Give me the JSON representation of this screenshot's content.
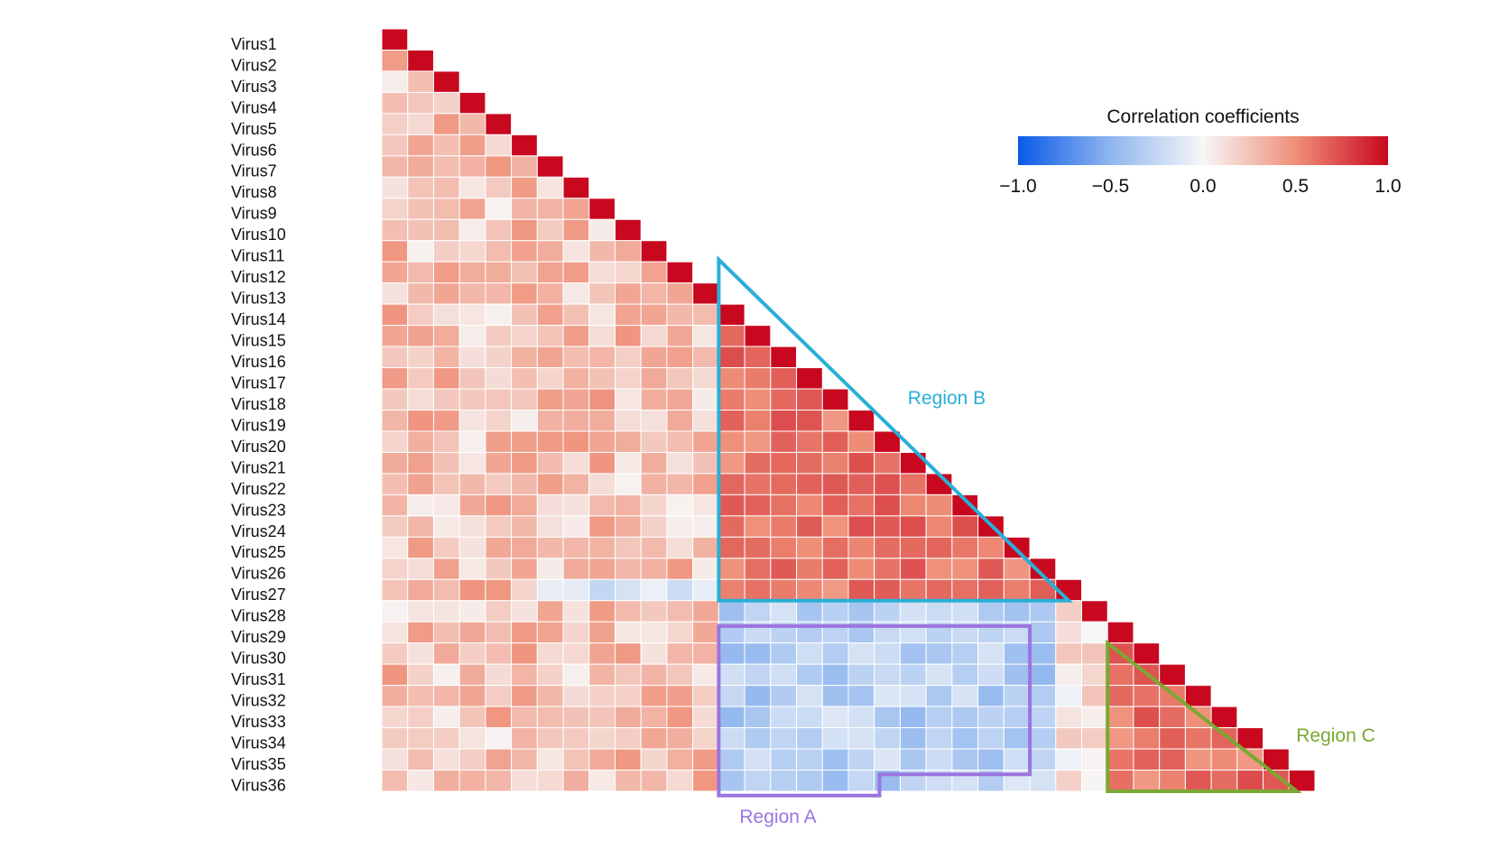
{
  "chart_data": {
    "type": "heatmap",
    "shape": "lower-triangle correlation matrix",
    "row_labels": [
      "Virus1",
      "Virus2",
      "Virus3",
      "Virus4",
      "Virus5",
      "Virus6",
      "Virus7",
      "Virus8",
      "Virus9",
      "Virus10",
      "Virus11",
      "Virus12",
      "Virus13",
      "Virus14",
      "Virus15",
      "Virus16",
      "Virus17",
      "Virus18",
      "Virus19",
      "Virus20",
      "Virus21",
      "Virus22",
      "Virus23",
      "Virus24",
      "Virus25",
      "Virus26",
      "Virus27",
      "Virus28",
      "Virus29",
      "Virus30",
      "Virus31",
      "Virus32",
      "Virus33",
      "Virus34",
      "Virus35",
      "Virus36"
    ],
    "colorbar": {
      "title": "Correlation coefficients",
      "min": -1.0,
      "max": 1.0,
      "ticks": [
        -1.0,
        -0.5,
        0.0,
        0.5,
        1.0
      ],
      "tick_labels": [
        "−1.0",
        "−0.5",
        "0.0",
        "0.5",
        "1.0"
      ],
      "colors": [
        "#0a5ae8",
        "#f7f7f7",
        "#c8081f"
      ]
    },
    "regions": [
      {
        "name": "Region A",
        "color": "#9b74e0",
        "description_rows": "Virus28-Virus36",
        "description_cols": "Virus14-Virus26",
        "typical_value": -0.3
      },
      {
        "name": "Region B",
        "color": "#29afd6",
        "description_rows": "Virus13-Virus27",
        "description_cols": "Virus14-Virus27",
        "typical_value": 0.6
      },
      {
        "name": "Region C",
        "color": "#7aa832",
        "description_rows": "Virus30-Virus36",
        "description_cols": "Virus29-Virus36",
        "typical_value": 0.6
      }
    ],
    "diagonal_value": 1.0,
    "region_labels": [
      "Region A",
      "Region B",
      "Region C"
    ]
  }
}
